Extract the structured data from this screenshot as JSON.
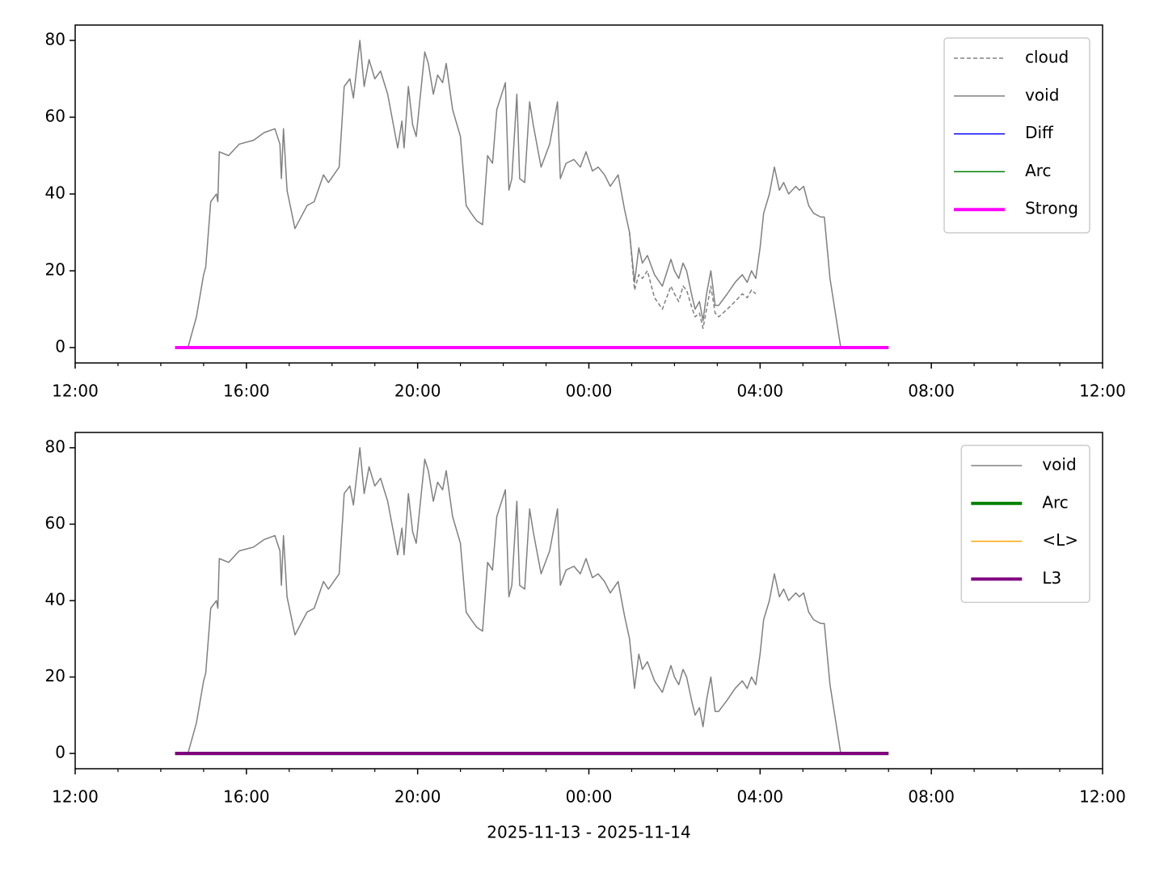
{
  "chart_data": [
    {
      "type": "line",
      "xlim": [
        "2025-11-13 12:00",
        "2025-11-14 12:00"
      ],
      "xticks": [
        {
          "value": "2025-11-13 12:00",
          "label": "12:00"
        },
        {
          "value": "2025-11-13 16:00",
          "label": "16:00"
        },
        {
          "value": "2025-11-13 20:00",
          "label": "20:00"
        },
        {
          "value": "2025-11-14 00:00",
          "label": "00:00"
        },
        {
          "value": "2025-11-14 04:00",
          "label": "04:00"
        },
        {
          "value": "2025-11-14 08:00",
          "label": "08:00"
        },
        {
          "value": "2025-11-14 12:00",
          "label": "12:00"
        }
      ],
      "xminor_ticks": [
        "2025-11-13 13:00",
        "2025-11-13 14:00",
        "2025-11-13 15:00",
        "2025-11-13 17:00",
        "2025-11-13 18:00",
        "2025-11-13 19:00",
        "2025-11-13 21:00",
        "2025-11-13 22:00",
        "2025-11-13 23:00",
        "2025-11-14 01:00",
        "2025-11-14 02:00",
        "2025-11-14 03:00",
        "2025-11-14 05:00",
        "2025-11-14 06:00",
        "2025-11-14 07:00",
        "2025-11-14 09:00",
        "2025-11-14 10:00",
        "2025-11-14 11:00"
      ],
      "ylim": [
        -4,
        84
      ],
      "yticks": [
        0,
        20,
        40,
        60,
        80
      ],
      "legend": "upper right",
      "series": [
        {
          "name": "cloud",
          "color": "#808080",
          "linestyle": "dashed",
          "linewidth": 1.5,
          "x": [
            "2025-11-14 00:57",
            "2025-11-14 01:04",
            "2025-11-14 01:10",
            "2025-11-14 01:15",
            "2025-11-14 01:22",
            "2025-11-14 01:32",
            "2025-11-14 01:43",
            "2025-11-14 01:55",
            "2025-11-14 02:00",
            "2025-11-14 02:06",
            "2025-11-14 02:12",
            "2025-11-14 02:17",
            "2025-11-14 02:25",
            "2025-11-14 02:29",
            "2025-11-14 02:35",
            "2025-11-14 02:40",
            "2025-11-14 02:45",
            "2025-11-14 02:51",
            "2025-11-14 02:57",
            "2025-11-14 03:02",
            "2025-11-14 03:14",
            "2025-11-14 03:25",
            "2025-11-14 03:35",
            "2025-11-14 03:42",
            "2025-11-14 03:48",
            "2025-11-14 03:54"
          ],
          "values": [
            30,
            15,
            19,
            18,
            20,
            13,
            10,
            16,
            14,
            12,
            16,
            15,
            10,
            8,
            9,
            5,
            10,
            16,
            9,
            8,
            10,
            12,
            14,
            13,
            15,
            14
          ]
        },
        {
          "name": "void",
          "color": "#808080",
          "linestyle": "solid",
          "linewidth": 1.5,
          "x": [
            "2025-11-13 14:38",
            "2025-11-13 14:50",
            "2025-11-13 15:00",
            "2025-11-13 15:03",
            "2025-11-13 15:10",
            "2025-11-13 15:18",
            "2025-11-13 15:20",
            "2025-11-13 15:22",
            "2025-11-13 15:35",
            "2025-11-13 15:50",
            "2025-11-13 16:10",
            "2025-11-13 16:25",
            "2025-11-13 16:40",
            "2025-11-13 16:47",
            "2025-11-13 16:49",
            "2025-11-13 16:52",
            "2025-11-13 16:57",
            "2025-11-13 17:08",
            "2025-11-13 17:25",
            "2025-11-13 17:35",
            "2025-11-13 17:48",
            "2025-11-13 17:55",
            "2025-11-13 18:10",
            "2025-11-13 18:17",
            "2025-11-13 18:25",
            "2025-11-13 18:30",
            "2025-11-13 18:39",
            "2025-11-13 18:45",
            "2025-11-13 18:52",
            "2025-11-13 19:00",
            "2025-11-13 19:08",
            "2025-11-13 19:18",
            "2025-11-13 19:25",
            "2025-11-13 19:32",
            "2025-11-13 19:38",
            "2025-11-13 19:41",
            "2025-11-13 19:47",
            "2025-11-13 19:53",
            "2025-11-13 19:58",
            "2025-11-13 20:10",
            "2025-11-13 20:15",
            "2025-11-13 20:22",
            "2025-11-13 20:28",
            "2025-11-13 20:35",
            "2025-11-13 20:40",
            "2025-11-13 20:49",
            "2025-11-13 21:00",
            "2025-11-13 21:08",
            "2025-11-13 21:15",
            "2025-11-13 21:23",
            "2025-11-13 21:31",
            "2025-11-13 21:38",
            "2025-11-13 21:45",
            "2025-11-13 21:51",
            "2025-11-13 22:03",
            "2025-11-13 22:08",
            "2025-11-13 22:12",
            "2025-11-13 22:19",
            "2025-11-13 22:23",
            "2025-11-13 22:30",
            "2025-11-13 22:37",
            "2025-11-13 22:42",
            "2025-11-13 22:53",
            "2025-11-13 23:05",
            "2025-11-13 23:16",
            "2025-11-13 23:20",
            "2025-11-13 23:28",
            "2025-11-13 23:39",
            "2025-11-13 23:48",
            "2025-11-13 23:56",
            "2025-11-14 00:05",
            "2025-11-14 00:13",
            "2025-11-14 00:22",
            "2025-11-14 00:30",
            "2025-11-14 00:41",
            "2025-11-14 00:50",
            "2025-11-14 00:57",
            "2025-11-14 01:04",
            "2025-11-14 01:10",
            "2025-11-14 01:15",
            "2025-11-14 01:22",
            "2025-11-14 01:32",
            "2025-11-14 01:43",
            "2025-11-14 01:55",
            "2025-11-14 02:00",
            "2025-11-14 02:06",
            "2025-11-14 02:12",
            "2025-11-14 02:17",
            "2025-11-14 02:25",
            "2025-11-14 02:29",
            "2025-11-14 02:35",
            "2025-11-14 02:40",
            "2025-11-14 02:45",
            "2025-11-14 02:51",
            "2025-11-14 02:57",
            "2025-11-14 03:02",
            "2025-11-14 03:14",
            "2025-11-14 03:25",
            "2025-11-14 03:35",
            "2025-11-14 03:42",
            "2025-11-14 03:48",
            "2025-11-14 03:54",
            "2025-11-14 04:00",
            "2025-11-14 04:05",
            "2025-11-14 04:13",
            "2025-11-14 04:20",
            "2025-11-14 04:27",
            "2025-11-14 04:33",
            "2025-11-14 04:40",
            "2025-11-14 04:50",
            "2025-11-14 04:55",
            "2025-11-14 05:01",
            "2025-11-14 05:08",
            "2025-11-14 05:15",
            "2025-11-14 05:25",
            "2025-11-14 05:30",
            "2025-11-14 05:38",
            "2025-11-14 05:53"
          ],
          "values": [
            0,
            8,
            19,
            21,
            38,
            40,
            38,
            51,
            50,
            53,
            54,
            56,
            57,
            53,
            44,
            57,
            41,
            31,
            37,
            38,
            45,
            43,
            47,
            68,
            70,
            65,
            80,
            68,
            75,
            70,
            72,
            66,
            59,
            52,
            59,
            52,
            68,
            58,
            55,
            77,
            74,
            66,
            71,
            69,
            74,
            62,
            55,
            37,
            35,
            33,
            32,
            50,
            48,
            62,
            69,
            41,
            44,
            66,
            44,
            43,
            64,
            58,
            47,
            53,
            64,
            44,
            48,
            49,
            47,
            51,
            46,
            47,
            45,
            42,
            45,
            36,
            30,
            17,
            26,
            22,
            24,
            19,
            16,
            23,
            20,
            18,
            22,
            20,
            13,
            10,
            12,
            7,
            14,
            20,
            11,
            11,
            14,
            17,
            19,
            17,
            20,
            18,
            26,
            35,
            40,
            47,
            41,
            43,
            40,
            42,
            41,
            42,
            37,
            35,
            34,
            34,
            18,
            0
          ]
        },
        {
          "name": "Diff",
          "color": "#0000ff",
          "linestyle": "solid",
          "linewidth": 1.5,
          "x": [
            "2025-11-13 14:20",
            "2025-11-14 07:00"
          ],
          "values": [
            0,
            0
          ]
        },
        {
          "name": "Arc",
          "color": "#008000",
          "linestyle": "solid",
          "linewidth": 1.5,
          "x": [
            "2025-11-13 14:20",
            "2025-11-14 07:00"
          ],
          "values": [
            0,
            0
          ]
        },
        {
          "name": "Strong",
          "color": "#ff00ff",
          "linestyle": "solid",
          "linewidth": 4,
          "x": [
            "2025-11-13 14:20",
            "2025-11-14 07:00"
          ],
          "values": [
            0,
            0
          ]
        }
      ]
    },
    {
      "type": "line",
      "xlabel": "2025-11-13 - 2025-11-14",
      "xlim": [
        "2025-11-13 12:00",
        "2025-11-14 12:00"
      ],
      "xticks": [
        {
          "value": "2025-11-13 12:00",
          "label": "12:00"
        },
        {
          "value": "2025-11-13 16:00",
          "label": "16:00"
        },
        {
          "value": "2025-11-13 20:00",
          "label": "20:00"
        },
        {
          "value": "2025-11-14 00:00",
          "label": "00:00"
        },
        {
          "value": "2025-11-14 04:00",
          "label": "04:00"
        },
        {
          "value": "2025-11-14 08:00",
          "label": "08:00"
        },
        {
          "value": "2025-11-14 12:00",
          "label": "12:00"
        }
      ],
      "xminor_ticks": [
        "2025-11-13 13:00",
        "2025-11-13 14:00",
        "2025-11-13 15:00",
        "2025-11-13 17:00",
        "2025-11-13 18:00",
        "2025-11-13 19:00",
        "2025-11-13 21:00",
        "2025-11-13 22:00",
        "2025-11-13 23:00",
        "2025-11-14 01:00",
        "2025-11-14 02:00",
        "2025-11-14 03:00",
        "2025-11-14 05:00",
        "2025-11-14 06:00",
        "2025-11-14 07:00",
        "2025-11-14 09:00",
        "2025-11-14 10:00",
        "2025-11-14 11:00"
      ],
      "ylim": [
        -4,
        84
      ],
      "yticks": [
        0,
        20,
        40,
        60,
        80
      ],
      "legend": "upper right",
      "series": [
        {
          "name": "void",
          "color": "#808080",
          "linestyle": "solid",
          "linewidth": 1.5,
          "x": [
            "2025-11-13 14:38",
            "2025-11-13 14:50",
            "2025-11-13 15:00",
            "2025-11-13 15:03",
            "2025-11-13 15:10",
            "2025-11-13 15:18",
            "2025-11-13 15:20",
            "2025-11-13 15:22",
            "2025-11-13 15:35",
            "2025-11-13 15:50",
            "2025-11-13 16:10",
            "2025-11-13 16:25",
            "2025-11-13 16:40",
            "2025-11-13 16:47",
            "2025-11-13 16:49",
            "2025-11-13 16:52",
            "2025-11-13 16:57",
            "2025-11-13 17:08",
            "2025-11-13 17:25",
            "2025-11-13 17:35",
            "2025-11-13 17:48",
            "2025-11-13 17:55",
            "2025-11-13 18:10",
            "2025-11-13 18:17",
            "2025-11-13 18:25",
            "2025-11-13 18:30",
            "2025-11-13 18:39",
            "2025-11-13 18:45",
            "2025-11-13 18:52",
            "2025-11-13 19:00",
            "2025-11-13 19:08",
            "2025-11-13 19:18",
            "2025-11-13 19:25",
            "2025-11-13 19:32",
            "2025-11-13 19:38",
            "2025-11-13 19:41",
            "2025-11-13 19:47",
            "2025-11-13 19:53",
            "2025-11-13 19:58",
            "2025-11-13 20:10",
            "2025-11-13 20:15",
            "2025-11-13 20:22",
            "2025-11-13 20:28",
            "2025-11-13 20:35",
            "2025-11-13 20:40",
            "2025-11-13 20:49",
            "2025-11-13 21:00",
            "2025-11-13 21:08",
            "2025-11-13 21:15",
            "2025-11-13 21:23",
            "2025-11-13 21:31",
            "2025-11-13 21:38",
            "2025-11-13 21:45",
            "2025-11-13 21:51",
            "2025-11-13 22:03",
            "2025-11-13 22:08",
            "2025-11-13 22:12",
            "2025-11-13 22:19",
            "2025-11-13 22:23",
            "2025-11-13 22:30",
            "2025-11-13 22:37",
            "2025-11-13 22:42",
            "2025-11-13 22:53",
            "2025-11-13 23:05",
            "2025-11-13 23:16",
            "2025-11-13 23:20",
            "2025-11-13 23:28",
            "2025-11-13 23:39",
            "2025-11-13 23:48",
            "2025-11-13 23:56",
            "2025-11-14 00:05",
            "2025-11-14 00:13",
            "2025-11-14 00:22",
            "2025-11-14 00:30",
            "2025-11-14 00:41",
            "2025-11-14 00:50",
            "2025-11-14 00:57",
            "2025-11-14 01:04",
            "2025-11-14 01:10",
            "2025-11-14 01:15",
            "2025-11-14 01:22",
            "2025-11-14 01:32",
            "2025-11-14 01:43",
            "2025-11-14 01:55",
            "2025-11-14 02:00",
            "2025-11-14 02:06",
            "2025-11-14 02:12",
            "2025-11-14 02:17",
            "2025-11-14 02:25",
            "2025-11-14 02:29",
            "2025-11-14 02:35",
            "2025-11-14 02:40",
            "2025-11-14 02:45",
            "2025-11-14 02:51",
            "2025-11-14 02:57",
            "2025-11-14 03:02",
            "2025-11-14 03:14",
            "2025-11-14 03:25",
            "2025-11-14 03:35",
            "2025-11-14 03:42",
            "2025-11-14 03:48",
            "2025-11-14 03:54",
            "2025-11-14 04:00",
            "2025-11-14 04:05",
            "2025-11-14 04:13",
            "2025-11-14 04:20",
            "2025-11-14 04:27",
            "2025-11-14 04:33",
            "2025-11-14 04:40",
            "2025-11-14 04:50",
            "2025-11-14 04:55",
            "2025-11-14 05:01",
            "2025-11-14 05:08",
            "2025-11-14 05:15",
            "2025-11-14 05:25",
            "2025-11-14 05:30",
            "2025-11-14 05:38",
            "2025-11-14 05:53"
          ],
          "values": [
            0,
            8,
            19,
            21,
            38,
            40,
            38,
            51,
            50,
            53,
            54,
            56,
            57,
            53,
            44,
            57,
            41,
            31,
            37,
            38,
            45,
            43,
            47,
            68,
            70,
            65,
            80,
            68,
            75,
            70,
            72,
            66,
            59,
            52,
            59,
            52,
            68,
            58,
            55,
            77,
            74,
            66,
            71,
            69,
            74,
            62,
            55,
            37,
            35,
            33,
            32,
            50,
            48,
            62,
            69,
            41,
            44,
            66,
            44,
            43,
            64,
            58,
            47,
            53,
            64,
            44,
            48,
            49,
            47,
            51,
            46,
            47,
            45,
            42,
            45,
            36,
            30,
            17,
            26,
            22,
            24,
            19,
            16,
            23,
            20,
            18,
            22,
            20,
            13,
            10,
            12,
            7,
            14,
            20,
            11,
            11,
            14,
            17,
            19,
            17,
            20,
            18,
            26,
            35,
            40,
            47,
            41,
            43,
            40,
            42,
            41,
            42,
            37,
            35,
            34,
            34,
            18,
            0
          ]
        },
        {
          "name": "Arc",
          "color": "#008000",
          "linestyle": "solid",
          "linewidth": 4,
          "x": [
            "2025-11-13 14:20",
            "2025-11-14 07:00"
          ],
          "values": [
            0,
            0
          ]
        },
        {
          "name": "<L>",
          "color": "#ffa500",
          "linestyle": "solid",
          "linewidth": 1.5,
          "x": [
            "2025-11-13 14:20",
            "2025-11-14 07:00"
          ],
          "values": [
            0,
            0
          ]
        },
        {
          "name": "L3",
          "color": "#800080",
          "linestyle": "solid",
          "linewidth": 4,
          "x": [
            "2025-11-13 14:20",
            "2025-11-14 07:00"
          ],
          "values": [
            0,
            0
          ]
        }
      ]
    }
  ]
}
